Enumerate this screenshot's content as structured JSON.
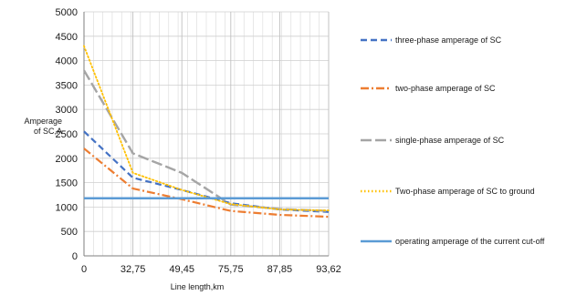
{
  "chart_data": {
    "type": "line",
    "xlabel": "Line length,km",
    "ylabel": "Amperage of SC,A",
    "ylabel_lines": [
      "Amperage",
      "of SC,A"
    ],
    "ylim": [
      0,
      5000
    ],
    "yticks": [
      0,
      500,
      1000,
      1500,
      2000,
      2500,
      3000,
      3500,
      4000,
      4500,
      5000
    ],
    "categories": [
      "0",
      "32,75",
      "49,45",
      "75,75",
      "87,85",
      "93,62"
    ],
    "grid": true,
    "legend_position": "right",
    "series": [
      {
        "name": "three-phase amperage of SC",
        "color": "#4472C4",
        "style": "dash",
        "values": [
          2550,
          1600,
          1350,
          1080,
          950,
          900
        ]
      },
      {
        "name": "two-phase amperage of SC",
        "color": "#ED7D31",
        "style": "dashdot",
        "values": [
          2200,
          1380,
          1160,
          920,
          840,
          800
        ]
      },
      {
        "name": "single-phase amperage of SC",
        "color": "#A5A5A5",
        "style": "longdash",
        "values": [
          3800,
          2100,
          1700,
          1050,
          960,
          920
        ]
      },
      {
        "name": "Two-phase amperage of SC to ground",
        "color": "#FFC000",
        "style": "dot",
        "values": [
          4300,
          1700,
          1350,
          1060,
          950,
          930
        ]
      },
      {
        "name": "operating amperage of the current cut-off",
        "color": "#5B9BD5",
        "style": "solid",
        "values": [
          1180,
          1180,
          1180,
          1180,
          1180,
          1180
        ]
      }
    ]
  }
}
